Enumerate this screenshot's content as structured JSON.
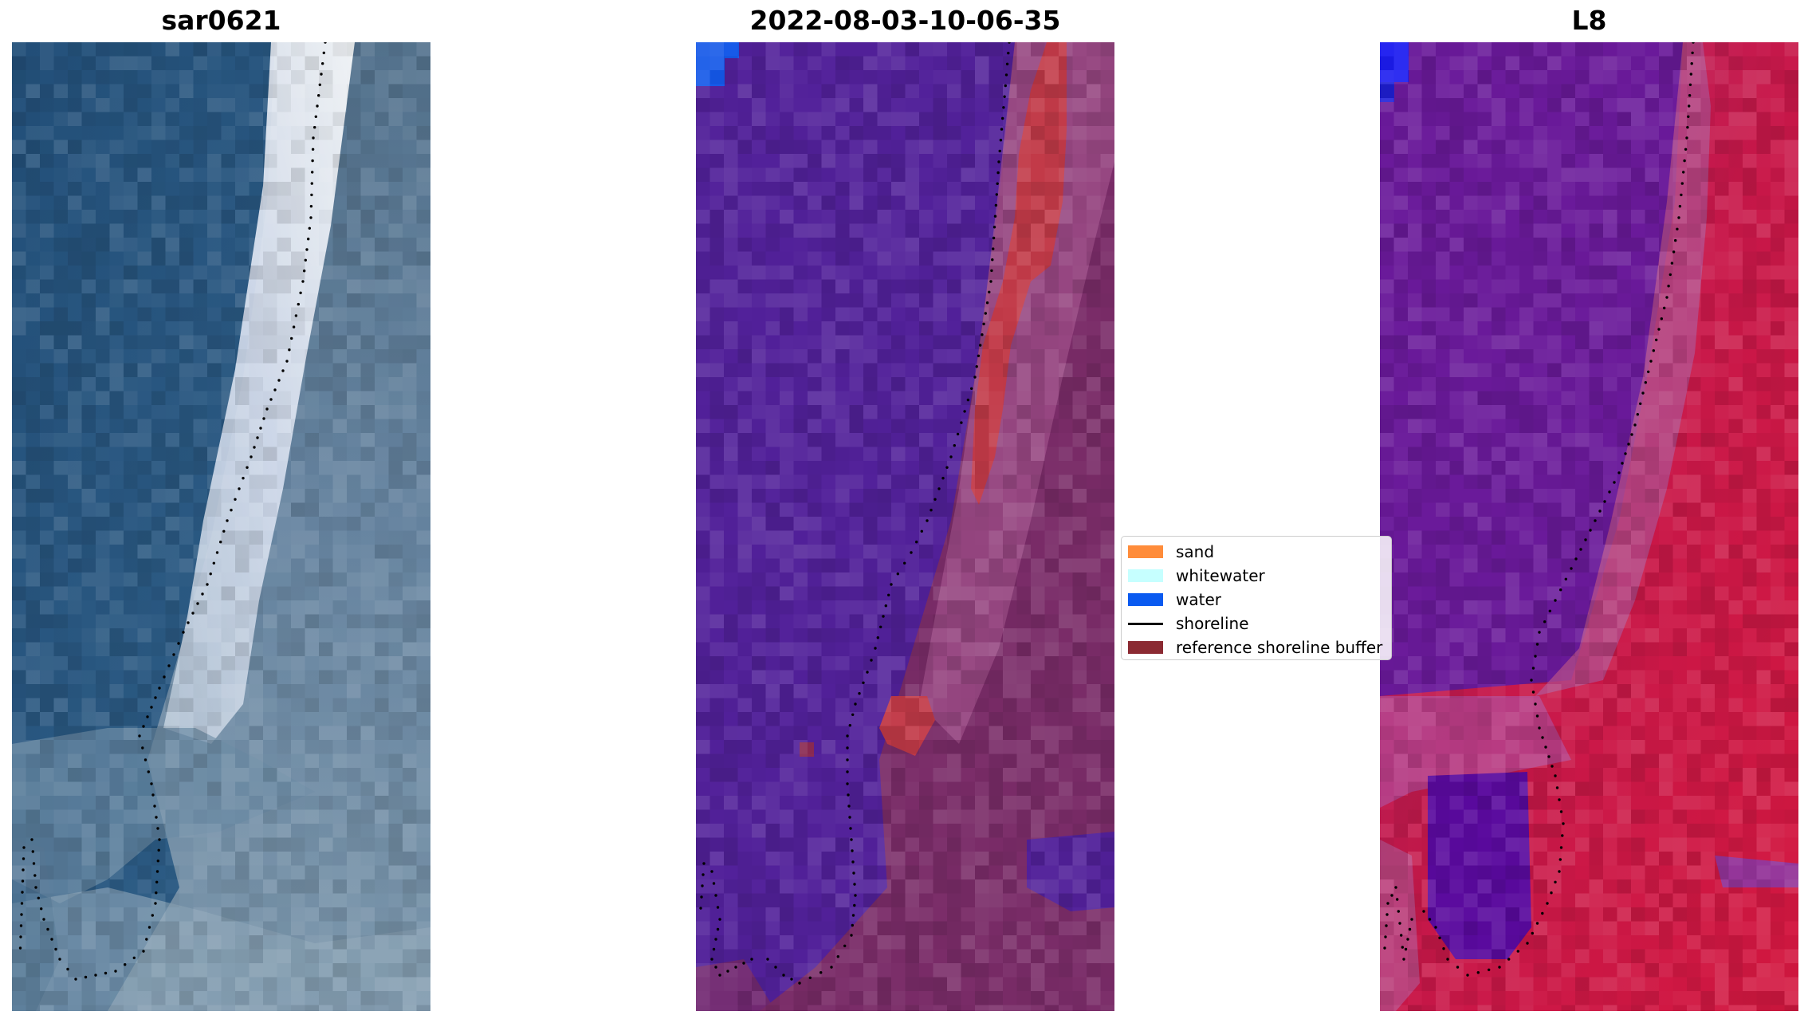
{
  "panels": [
    {
      "title": "sar0621",
      "kind": "rgb"
    },
    {
      "title": "2022-08-03-10-06-35",
      "kind": "classified"
    },
    {
      "title": "L8",
      "kind": "falsecolor"
    }
  ],
  "legend": {
    "items": [
      {
        "label": "sand",
        "type": "patch",
        "color": "#ff8c3a"
      },
      {
        "label": "whitewater",
        "type": "patch",
        "color": "#c6ffff"
      },
      {
        "label": "water",
        "type": "patch",
        "color": "#0a5af0"
      },
      {
        "label": "shoreline",
        "type": "line",
        "color": "#000000"
      },
      {
        "label": "reference shoreline buffer",
        "type": "patch",
        "color": "#8b2a32"
      }
    ]
  },
  "colors": {
    "rgb_water": "#2b5780",
    "rgb_whitewater": "#e8ecf4",
    "rgb_land": "#5f7d95",
    "class_water": "#52219a",
    "class_land": "#7a2c68",
    "class_buffer": "#c23a48",
    "fc_water": "#6a1a9a",
    "fc_land": "#c8184a"
  }
}
